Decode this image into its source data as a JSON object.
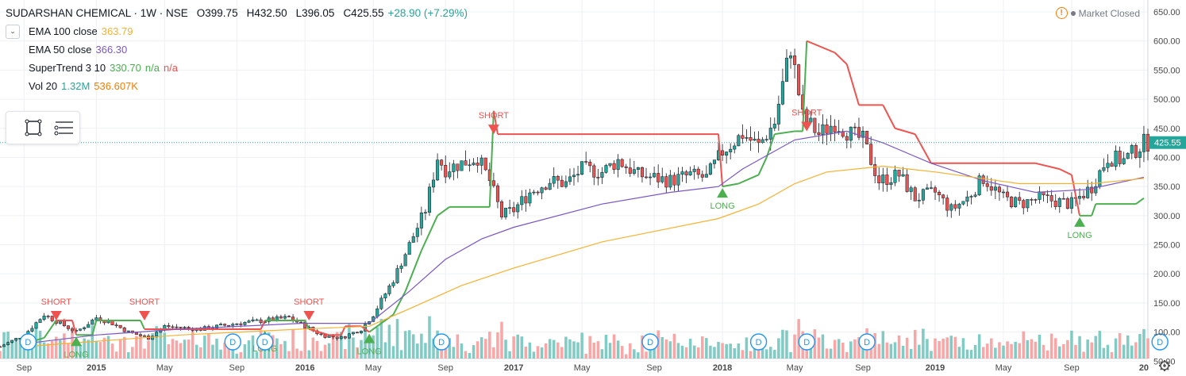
{
  "header": {
    "symbol": "SUDARSHAN CHEMICAL · 1W · NSE",
    "open": "O399.75",
    "high": "H432.50",
    "low": "L396.05",
    "close": "C425.55",
    "change": "+28.90 (+7.29%)"
  },
  "indicators": [
    {
      "name": "EMA 100 close",
      "value": "363.79",
      "color": "#f6b130"
    },
    {
      "name": "EMA 50 close",
      "value": "366.30",
      "color": "#7b57c6"
    },
    {
      "name": "SuperTrend 3 10",
      "value": "330.70",
      "extra1": "n/a",
      "extra2": "n/a",
      "color": "#4caf50",
      "extra_color": "#ef5350"
    },
    {
      "name": "Vol 20",
      "value": "1.32M",
      "value2": "536.607K",
      "color": "#26a69a",
      "color2": "#f57c00"
    }
  ],
  "status": {
    "label": "Market Closed"
  },
  "icons": {
    "collapse": "chevron-down-icon",
    "rect_tool": "rectangle-tool-icon",
    "lines_tool": "horizontal-lines-icon",
    "settings": "gear-icon",
    "warning": "warning-icon"
  },
  "colors": {
    "up": "#26a69a",
    "down": "#ef5350",
    "ema100": "#f6b130",
    "ema50": "#7b57c6",
    "st_long": "#4caf50",
    "st_short": "#ef5350",
    "vol_up": "#80cbc4",
    "vol_down": "#f8a6a6"
  },
  "chart_data": {
    "type": "line",
    "series": [
      {
        "name": "SuperTrend 3 10",
        "values": [
          [
            "2014-09-01",
            80
          ],
          [
            "2014-10-06",
            90
          ],
          [
            "2014-10-27",
            120
          ],
          [
            "2014-11-24",
            120
          ],
          [
            "2014-12-01",
            95
          ],
          [
            "2014-12-29",
            95
          ],
          [
            "2015-01-05",
            120
          ],
          [
            "2015-03-23",
            120
          ],
          [
            "2015-03-30",
            105
          ],
          [
            "2015-10-19",
            105
          ],
          [
            "2015-10-26",
            120
          ],
          [
            "2016-01-04",
            120
          ],
          [
            "2016-01-11",
            105
          ],
          [
            "2016-02-15",
            95
          ],
          [
            "2016-03-07",
            95
          ],
          [
            "2016-03-14",
            110
          ],
          [
            "2016-04-11",
            110
          ],
          [
            "2016-04-25",
            100
          ],
          [
            "2016-05-16",
            115
          ],
          [
            "2016-06-06",
            130
          ],
          [
            "2016-06-27",
            170
          ],
          [
            "2016-07-25",
            240
          ],
          [
            "2016-08-22",
            300
          ],
          [
            "2016-09-12",
            315
          ],
          [
            "2016-11-21",
            315
          ],
          [
            "2016-11-28",
            480
          ],
          [
            "2016-12-05",
            440
          ],
          [
            "2017-12-25",
            440
          ],
          [
            "2018-01-01",
            350
          ],
          [
            "2018-01-29",
            355
          ],
          [
            "2018-03-05",
            370
          ],
          [
            "2018-03-19",
            400
          ],
          [
            "2018-04-02",
            440
          ],
          [
            "2018-05-07",
            445
          ],
          [
            "2018-05-21",
            445
          ],
          [
            "2018-05-28",
            600
          ],
          [
            "2018-07-16",
            580
          ],
          [
            "2018-08-06",
            560
          ],
          [
            "2018-08-27",
            490
          ],
          [
            "2018-10-08",
            490
          ],
          [
            "2018-10-29",
            450
          ],
          [
            "2018-12-03",
            440
          ],
          [
            "2018-12-31",
            390
          ],
          [
            "2019-07-01",
            390
          ],
          [
            "2019-08-12",
            380
          ],
          [
            "2019-09-02",
            370
          ],
          [
            "2019-09-16",
            300
          ],
          [
            "2019-10-07",
            300
          ],
          [
            "2019-10-14",
            320
          ],
          [
            "2019-12-23",
            320
          ],
          [
            "2020-01-06",
            330
          ]
        ]
      },
      {
        "name": "EMA 50 close",
        "values": [
          [
            "2014-09-01",
            80
          ],
          [
            "2015-01-05",
            95
          ],
          [
            "2015-06-01",
            105
          ],
          [
            "2015-12-28",
            115
          ],
          [
            "2016-04-25",
            115
          ],
          [
            "2016-07-04",
            170
          ],
          [
            "2016-09-05",
            225
          ],
          [
            "2016-11-07",
            260
          ],
          [
            "2017-01-02",
            280
          ],
          [
            "2017-06-05",
            320
          ],
          [
            "2017-10-02",
            340
          ],
          [
            "2017-12-25",
            350
          ],
          [
            "2018-02-05",
            380
          ],
          [
            "2018-05-07",
            430
          ],
          [
            "2018-08-06",
            445
          ],
          [
            "2018-10-08",
            425
          ],
          [
            "2018-12-31",
            390
          ],
          [
            "2019-04-01",
            360
          ],
          [
            "2019-07-01",
            340
          ],
          [
            "2019-09-30",
            345
          ],
          [
            "2020-01-06",
            366
          ]
        ]
      },
      {
        "name": "EMA 100 close",
        "values": [
          [
            "2014-09-01",
            75
          ],
          [
            "2015-06-01",
            95
          ],
          [
            "2015-12-28",
            105
          ],
          [
            "2016-04-25",
            110
          ],
          [
            "2016-07-04",
            140
          ],
          [
            "2016-10-03",
            180
          ],
          [
            "2017-01-02",
            210
          ],
          [
            "2017-06-05",
            255
          ],
          [
            "2017-12-25",
            295
          ],
          [
            "2018-03-05",
            320
          ],
          [
            "2018-05-07",
            355
          ],
          [
            "2018-07-02",
            375
          ],
          [
            "2018-10-08",
            385
          ],
          [
            "2019-01-07",
            375
          ],
          [
            "2019-06-03",
            355
          ],
          [
            "2019-10-07",
            355
          ],
          [
            "2020-01-06",
            364
          ]
        ]
      }
    ],
    "signals": [
      {
        "type": "SHORT",
        "date": "2014-10-27",
        "price": 120
      },
      {
        "type": "LONG",
        "date": "2014-12-01",
        "price": 95
      },
      {
        "type": "SHORT",
        "date": "2015-03-30",
        "price": 120
      },
      {
        "type": "LONG",
        "date": "2015-10-26",
        "price": 105
      },
      {
        "type": "SHORT",
        "date": "2016-01-11",
        "price": 120
      },
      {
        "type": "LONG",
        "date": "2016-04-25",
        "price": 100
      },
      {
        "type": "SHORT",
        "date": "2016-11-28",
        "price": 440
      },
      {
        "type": "LONG",
        "date": "2018-01-01",
        "price": 350
      },
      {
        "type": "SHORT",
        "date": "2018-05-28",
        "price": 445
      },
      {
        "type": "LONG",
        "date": "2019-09-16",
        "price": 300
      }
    ],
    "dividends": [
      "2014-09-08",
      "2015-08-31",
      "2015-10-26",
      "2016-08-29",
      "2017-08-28",
      "2018-03-05",
      "2018-05-28",
      "2018-09-10",
      "2020-02-03"
    ],
    "last_price": 425.55,
    "y_axis": {
      "min": 0,
      "max": 650,
      "ticks": [
        "650.00",
        "600.00",
        "550.00",
        "500.00",
        "450.00",
        "400.00",
        "350.00",
        "300.00",
        "250.00",
        "200.00",
        "150.00",
        "100.00",
        "50.00"
      ],
      "unit": "INR"
    },
    "x_axis": {
      "ticks": [
        [
          "2014-09-01",
          "Sep"
        ],
        [
          "2015-01-05",
          "2015"
        ],
        [
          "2015-05-04",
          "May"
        ],
        [
          "2015-09-07",
          "Sep"
        ],
        [
          "2016-01-04",
          "2016"
        ],
        [
          "2016-05-02",
          "May"
        ],
        [
          "2016-09-05",
          "Sep"
        ],
        [
          "2017-01-02",
          "2017"
        ],
        [
          "2017-05-01",
          "May"
        ],
        [
          "2017-09-04",
          "Sep"
        ],
        [
          "2018-01-01",
          "2018"
        ],
        [
          "2018-05-07",
          "May"
        ],
        [
          "2018-09-03",
          "Sep"
        ],
        [
          "2019-01-07",
          "2019"
        ],
        [
          "2019-05-06",
          "May"
        ],
        [
          "2019-09-02",
          "Sep"
        ],
        [
          "2020-01-06",
          "20"
        ]
      ]
    },
    "x_range": [
      "2014-07-21",
      "2020-01-13"
    ],
    "grid": true,
    "price_anchors": [
      [
        "2014-07-21",
        75
      ],
      [
        "2014-09-01",
        95
      ],
      [
        "2014-10-06",
        130
      ],
      [
        "2014-11-03",
        115
      ],
      [
        "2014-12-01",
        100
      ],
      [
        "2015-01-05",
        125
      ],
      [
        "2015-02-02",
        115
      ],
      [
        "2015-03-02",
        100
      ],
      [
        "2015-04-06",
        90
      ],
      [
        "2015-05-04",
        110
      ],
      [
        "2015-07-06",
        105
      ],
      [
        "2015-09-07",
        115
      ],
      [
        "2015-10-26",
        120
      ],
      [
        "2015-12-07",
        125
      ],
      [
        "2016-01-04",
        110
      ],
      [
        "2016-02-01",
        95
      ],
      [
        "2016-03-07",
        90
      ],
      [
        "2016-04-11",
        105
      ],
      [
        "2016-05-02",
        130
      ],
      [
        "2016-06-06",
        190
      ],
      [
        "2016-07-04",
        250
      ],
      [
        "2016-08-01",
        310
      ],
      [
        "2016-08-22",
        400
      ],
      [
        "2016-09-05",
        380
      ],
      [
        "2016-10-03",
        390
      ],
      [
        "2016-10-31",
        400
      ],
      [
        "2016-11-21",
        360
      ],
      [
        "2016-12-12",
        300
      ],
      [
        "2017-01-02",
        310
      ],
      [
        "2017-01-30",
        340
      ],
      [
        "2017-03-06",
        360
      ],
      [
        "2017-04-03",
        355
      ],
      [
        "2017-05-01",
        380
      ],
      [
        "2017-06-05",
        375
      ],
      [
        "2017-07-03",
        395
      ],
      [
        "2017-08-07",
        370
      ],
      [
        "2017-09-04",
        365
      ],
      [
        "2017-10-02",
        360
      ],
      [
        "2017-11-06",
        370
      ],
      [
        "2017-12-04",
        365
      ],
      [
        "2018-01-01",
        410
      ],
      [
        "2018-02-05",
        440
      ],
      [
        "2018-03-05",
        420
      ],
      [
        "2018-04-02",
        460
      ],
      [
        "2018-04-30",
        590
      ],
      [
        "2018-05-21",
        470
      ],
      [
        "2018-06-18",
        440
      ],
      [
        "2018-07-16",
        460
      ],
      [
        "2018-08-13",
        440
      ],
      [
        "2018-09-03",
        430
      ],
      [
        "2018-10-01",
        360
      ],
      [
        "2018-11-05",
        370
      ],
      [
        "2018-12-03",
        330
      ],
      [
        "2019-01-07",
        340
      ],
      [
        "2019-02-04",
        310
      ],
      [
        "2019-03-04",
        330
      ],
      [
        "2019-04-01",
        365
      ],
      [
        "2019-05-06",
        330
      ],
      [
        "2019-06-03",
        320
      ],
      [
        "2019-07-08",
        330
      ],
      [
        "2019-08-05",
        325
      ],
      [
        "2019-09-02",
        320
      ],
      [
        "2019-10-07",
        350
      ],
      [
        "2019-11-04",
        400
      ],
      [
        "2019-12-02",
        395
      ],
      [
        "2020-01-06",
        425
      ]
    ],
    "volume_scale": {
      "max": "1.32M"
    }
  }
}
